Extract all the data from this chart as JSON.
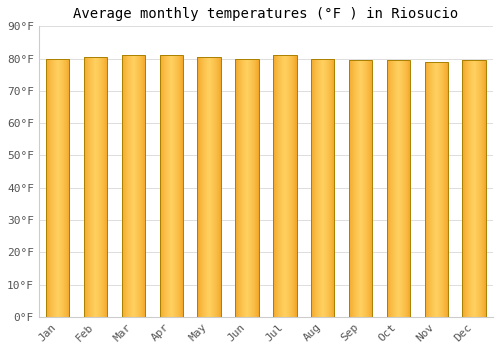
{
  "title": "Average monthly temperatures (°F ) in Riosucio",
  "months": [
    "Jan",
    "Feb",
    "Mar",
    "Apr",
    "May",
    "Jun",
    "Jul",
    "Aug",
    "Sep",
    "Oct",
    "Nov",
    "Dec"
  ],
  "values": [
    80.0,
    80.5,
    81.0,
    81.2,
    80.5,
    80.0,
    81.0,
    80.0,
    79.5,
    79.5,
    79.0,
    79.5
  ],
  "ylim": [
    0,
    90
  ],
  "yticks": [
    0,
    10,
    20,
    30,
    40,
    50,
    60,
    70,
    80,
    90
  ],
  "ytick_labels": [
    "0°F",
    "10°F",
    "20°F",
    "30°F",
    "40°F",
    "50°F",
    "60°F",
    "70°F",
    "80°F",
    "90°F"
  ],
  "bar_color_center": "#FFD060",
  "bar_color_edge": "#F0A020",
  "bar_border_color": "#AA8000",
  "background_color": "#FFFFFF",
  "plot_bg_color": "#FFFFFF",
  "grid_color": "#DDDDDD",
  "title_fontsize": 10,
  "tick_fontsize": 8,
  "bar_width": 0.62,
  "num_gradient_steps": 80
}
